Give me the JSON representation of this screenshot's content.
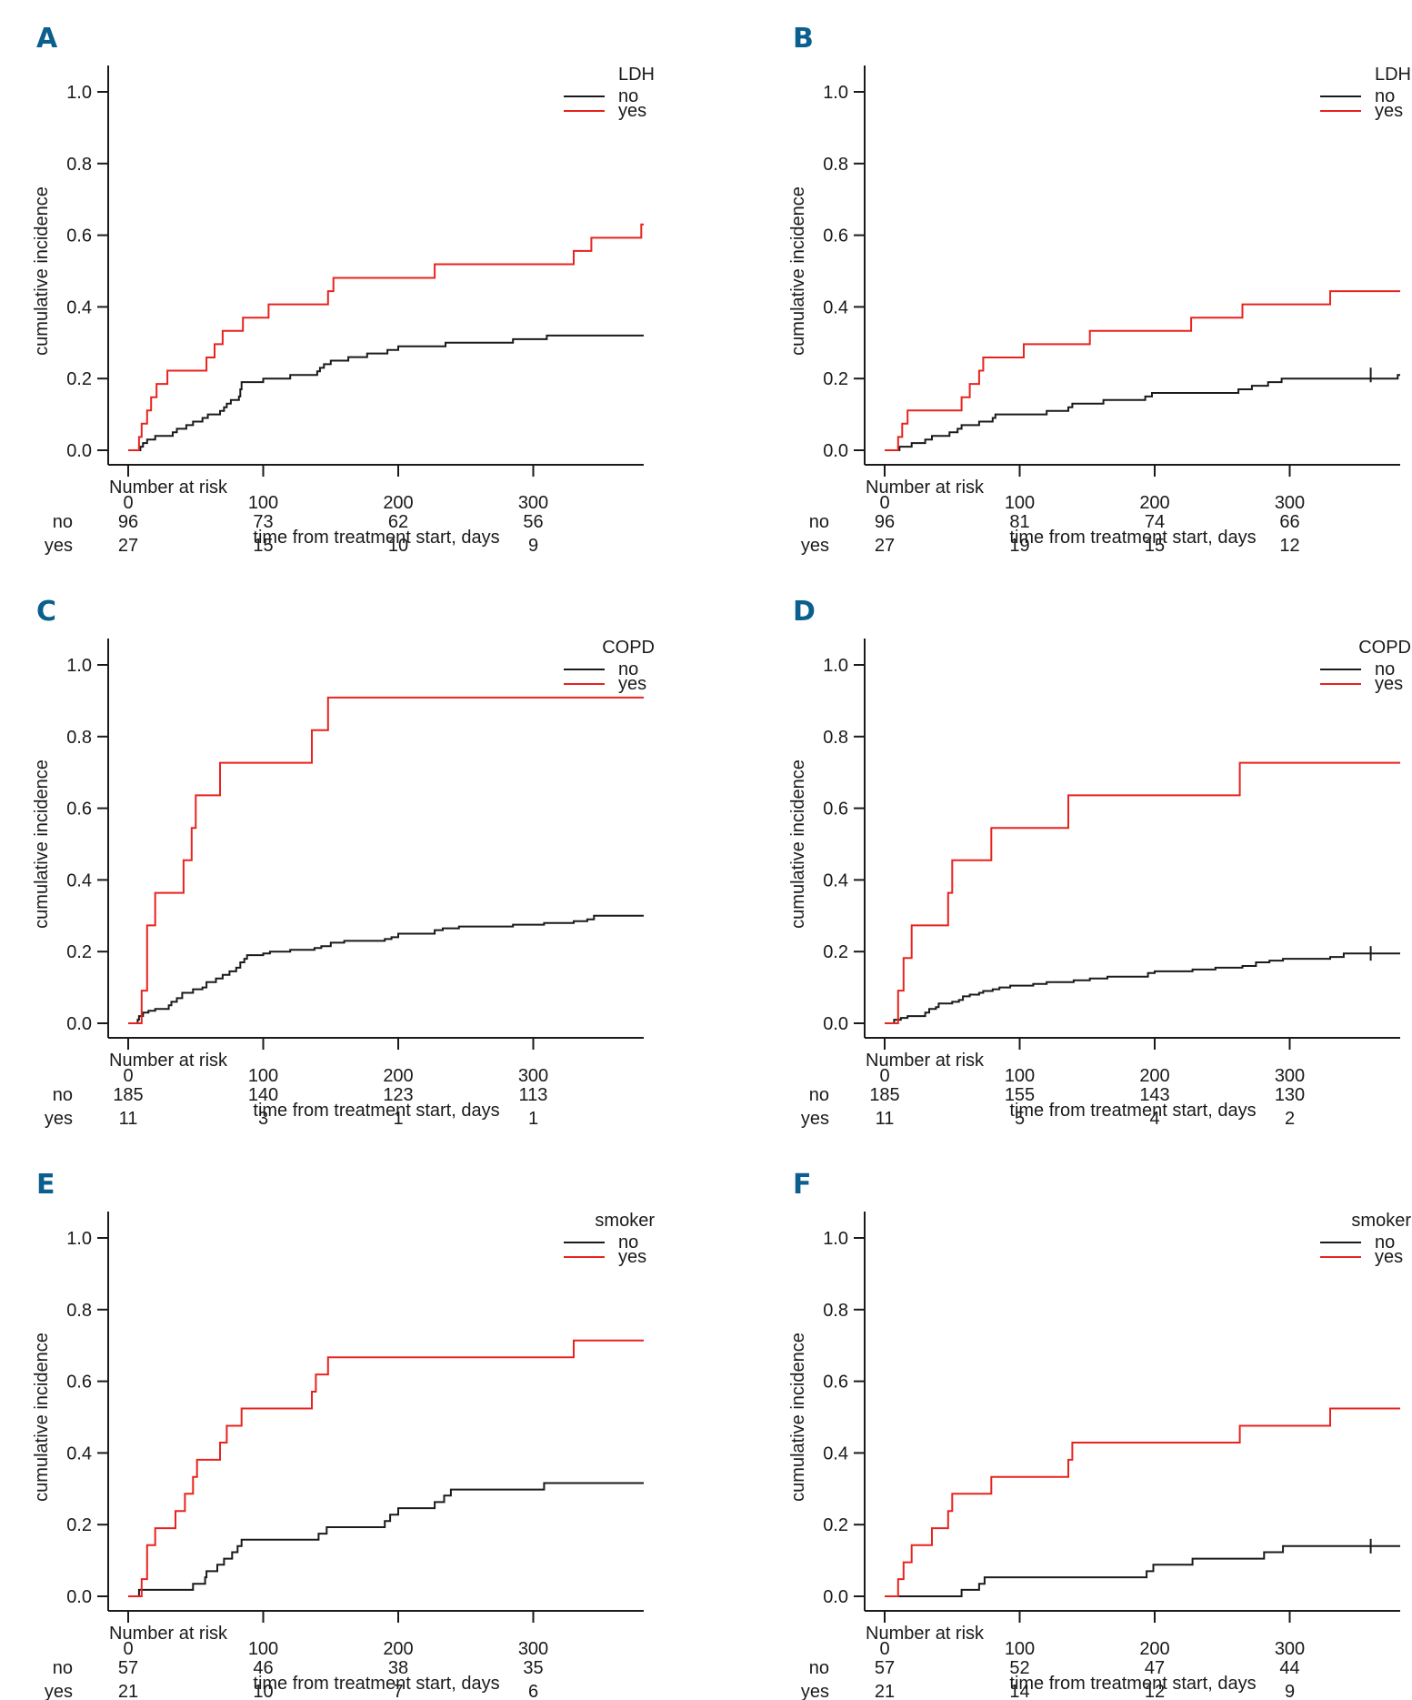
{
  "colors": {
    "no": "#1a1a1a",
    "yes": "#e8231e",
    "panel_letter": "#0b5f8f",
    "axis": "#1a1a1a"
  },
  "chart_data": [
    {
      "panel": "A",
      "type": "line",
      "step": true,
      "xlabel": "time from treatment start, days",
      "ylabel": "cumulative incidence",
      "xlim": [
        0,
        380
      ],
      "ylim": [
        0,
        1.0
      ],
      "xticks": [
        0,
        100,
        200,
        300
      ],
      "yticks": [
        "0.0",
        "0.2",
        "0.4",
        "0.6",
        "0.8",
        "1.0"
      ],
      "legend": {
        "title": "LDH",
        "position": "top-right",
        "entries": [
          "no",
          "yes"
        ]
      },
      "series": [
        {
          "name": "no",
          "censor_marks": [],
          "x": [
            0,
            7,
            9,
            11,
            14,
            20,
            30,
            33,
            36,
            43,
            48,
            55,
            59,
            68,
            71,
            73,
            76,
            82,
            83,
            84,
            98,
            100,
            120,
            140,
            142,
            145,
            150,
            163,
            177,
            192,
            195,
            200,
            225,
            235,
            285,
            310,
            330,
            380
          ],
          "y": [
            0,
            0,
            0.01,
            0.02,
            0.03,
            0.04,
            0.04,
            0.05,
            0.06,
            0.07,
            0.08,
            0.09,
            0.1,
            0.11,
            0.12,
            0.13,
            0.14,
            0.15,
            0.17,
            0.19,
            0.19,
            0.2,
            0.21,
            0.22,
            0.23,
            0.24,
            0.25,
            0.26,
            0.27,
            0.28,
            0.28,
            0.29,
            0.29,
            0.3,
            0.31,
            0.32,
            0.32,
            0.32
          ]
        },
        {
          "name": "yes",
          "censor_marks": [],
          "x": [
            0,
            7,
            8,
            10,
            14,
            17,
            21,
            29,
            58,
            64,
            70,
            85,
            104,
            148,
            152,
            227,
            330,
            343,
            380
          ],
          "y": [
            0,
            0,
            0.037,
            0.074,
            0.111,
            0.148,
            0.185,
            0.222,
            0.259,
            0.296,
            0.333,
            0.37,
            0.407,
            0.444,
            0.481,
            0.519,
            0.556,
            0.593,
            0.63
          ]
        }
      ],
      "number_at_risk": {
        "title": "Number at risk",
        "times": [
          0,
          100,
          200,
          300
        ],
        "rows": [
          {
            "label": "no",
            "values": [
              96,
              73,
              62,
              56
            ]
          },
          {
            "label": "yes",
            "values": [
              27,
              15,
              10,
              9
            ]
          }
        ]
      }
    },
    {
      "panel": "B",
      "type": "line",
      "step": true,
      "xlabel": "time from treatment start, days",
      "ylabel": "cumulative incidence",
      "xlim": [
        0,
        380
      ],
      "ylim": [
        0,
        1.0
      ],
      "xticks": [
        0,
        100,
        200,
        300
      ],
      "yticks": [
        "0.0",
        "0.2",
        "0.4",
        "0.6",
        "0.8",
        "1.0"
      ],
      "legend": {
        "title": "LDH",
        "position": "top-right",
        "entries": [
          "no",
          "yes"
        ]
      },
      "series": [
        {
          "name": "no",
          "censor_marks": [
            [
              360,
              0.21
            ]
          ],
          "x": [
            0,
            11,
            20,
            30,
            35,
            48,
            54,
            57,
            70,
            80,
            82,
            120,
            136,
            139,
            162,
            193,
            198,
            262,
            272,
            284,
            294,
            380
          ],
          "y": [
            0,
            0.01,
            0.02,
            0.03,
            0.04,
            0.05,
            0.06,
            0.07,
            0.08,
            0.09,
            0.1,
            0.11,
            0.12,
            0.13,
            0.14,
            0.15,
            0.16,
            0.17,
            0.18,
            0.19,
            0.2,
            0.21
          ]
        },
        {
          "name": "yes",
          "censor_marks": [],
          "x": [
            0,
            10,
            13,
            17,
            57,
            63,
            70,
            73,
            103,
            152,
            227,
            265,
            330,
            380
          ],
          "y": [
            0,
            0.037,
            0.074,
            0.111,
            0.148,
            0.185,
            0.222,
            0.259,
            0.296,
            0.333,
            0.37,
            0.407,
            0.444,
            0.444
          ]
        }
      ],
      "number_at_risk": {
        "title": "Number at risk",
        "times": [
          0,
          100,
          200,
          300
        ],
        "rows": [
          {
            "label": "no",
            "values": [
              96,
              81,
              74,
              66
            ]
          },
          {
            "label": "yes",
            "values": [
              27,
              19,
              15,
              12
            ]
          }
        ]
      }
    },
    {
      "panel": "C",
      "type": "line",
      "step": true,
      "xlabel": "time from treatment start, days",
      "ylabel": "cumulative incidence",
      "xlim": [
        0,
        380
      ],
      "ylim": [
        0,
        1.0
      ],
      "xticks": [
        0,
        100,
        200,
        300
      ],
      "yticks": [
        "0.0",
        "0.2",
        "0.4",
        "0.6",
        "0.8",
        "1.0"
      ],
      "legend": {
        "title": "COPD",
        "position": "top-right",
        "entries": [
          "no",
          "yes"
        ]
      },
      "series": [
        {
          "name": "no",
          "censor_marks": [],
          "x": [
            0,
            7,
            8,
            11,
            15,
            20,
            30,
            32,
            36,
            40,
            48,
            55,
            58,
            65,
            70,
            75,
            80,
            83,
            86,
            88,
            100,
            105,
            120,
            138,
            143,
            150,
            160,
            190,
            195,
            200,
            227,
            233,
            245,
            285,
            308,
            330,
            340,
            345,
            380
          ],
          "y": [
            0,
            0.01,
            0.02,
            0.03,
            0.035,
            0.04,
            0.05,
            0.06,
            0.07,
            0.085,
            0.095,
            0.1,
            0.115,
            0.125,
            0.135,
            0.145,
            0.155,
            0.17,
            0.18,
            0.19,
            0.195,
            0.2,
            0.205,
            0.21,
            0.215,
            0.225,
            0.23,
            0.235,
            0.24,
            0.25,
            0.26,
            0.265,
            0.27,
            0.275,
            0.28,
            0.285,
            0.29,
            0.3,
            0.3
          ]
        },
        {
          "name": "yes",
          "censor_marks": [],
          "x": [
            0,
            10,
            14,
            20,
            41,
            47,
            50,
            68,
            136,
            148,
            380
          ],
          "y": [
            0,
            0.091,
            0.273,
            0.364,
            0.455,
            0.545,
            0.636,
            0.727,
            0.818,
            0.909,
            0.909
          ]
        }
      ],
      "number_at_risk": {
        "title": "Number at risk",
        "times": [
          0,
          100,
          200,
          300
        ],
        "rows": [
          {
            "label": "no",
            "values": [
              185,
              140,
              123,
              113
            ]
          },
          {
            "label": "yes",
            "values": [
              11,
              3,
              1,
              1
            ]
          }
        ]
      }
    },
    {
      "panel": "D",
      "type": "line",
      "step": true,
      "xlabel": "time from treatment start, days",
      "ylabel": "cumulative incidence",
      "xlim": [
        0,
        380
      ],
      "ylim": [
        0,
        1.0
      ],
      "xticks": [
        0,
        100,
        200,
        300
      ],
      "yticks": [
        "0.0",
        "0.2",
        "0.4",
        "0.6",
        "0.8",
        "1.0"
      ],
      "legend": {
        "title": "COPD",
        "position": "top-right",
        "entries": [
          "no",
          "yes"
        ]
      },
      "series": [
        {
          "name": "no",
          "censor_marks": [
            [
              360,
              0.195
            ]
          ],
          "x": [
            0,
            7,
            12,
            17,
            30,
            33,
            38,
            40,
            50,
            55,
            58,
            63,
            70,
            73,
            80,
            85,
            93,
            110,
            120,
            140,
            152,
            165,
            195,
            200,
            228,
            245,
            265,
            275,
            285,
            295,
            330,
            340,
            380
          ],
          "y": [
            0,
            0.01,
            0.015,
            0.02,
            0.03,
            0.04,
            0.045,
            0.055,
            0.06,
            0.065,
            0.075,
            0.08,
            0.085,
            0.09,
            0.095,
            0.1,
            0.105,
            0.11,
            0.115,
            0.12,
            0.125,
            0.13,
            0.14,
            0.145,
            0.15,
            0.155,
            0.16,
            0.17,
            0.175,
            0.18,
            0.185,
            0.195,
            0.195
          ]
        },
        {
          "name": "yes",
          "censor_marks": [],
          "x": [
            0,
            10,
            14,
            20,
            47,
            50,
            79,
            136,
            263,
            380
          ],
          "y": [
            0,
            0.091,
            0.182,
            0.273,
            0.364,
            0.455,
            0.545,
            0.636,
            0.727,
            0.727
          ]
        }
      ],
      "number_at_risk": {
        "title": "Number at risk",
        "times": [
          0,
          100,
          200,
          300
        ],
        "rows": [
          {
            "label": "no",
            "values": [
              185,
              155,
              143,
              130
            ]
          },
          {
            "label": "yes",
            "values": [
              11,
              5,
              4,
              2
            ]
          }
        ]
      }
    },
    {
      "panel": "E",
      "type": "line",
      "step": true,
      "xlabel": "time from treatment start, days",
      "ylabel": "cumulative incidence",
      "xlim": [
        0,
        380
      ],
      "ylim": [
        0,
        1.0
      ],
      "xticks": [
        0,
        100,
        200,
        300
      ],
      "yticks": [
        "0.0",
        "0.2",
        "0.4",
        "0.6",
        "0.8",
        "1.0"
      ],
      "legend": {
        "title": "smoker",
        "position": "top-right",
        "entries": [
          "no",
          "yes"
        ]
      },
      "series": [
        {
          "name": "no",
          "censor_marks": [],
          "x": [
            0,
            8,
            48,
            57,
            58,
            66,
            71,
            77,
            81,
            84,
            141,
            147,
            190,
            194,
            200,
            227,
            234,
            239,
            308,
            380
          ],
          "y": [
            0,
            0.018,
            0.035,
            0.053,
            0.07,
            0.088,
            0.105,
            0.123,
            0.14,
            0.158,
            0.175,
            0.193,
            0.21,
            0.228,
            0.246,
            0.263,
            0.281,
            0.298,
            0.316,
            0.316
          ]
        },
        {
          "name": "yes",
          "censor_marks": [],
          "x": [
            0,
            10,
            14,
            20,
            35,
            42,
            48,
            51,
            68,
            73,
            84,
            136,
            139,
            148,
            330,
            380
          ],
          "y": [
            0,
            0.048,
            0.143,
            0.19,
            0.238,
            0.286,
            0.333,
            0.381,
            0.429,
            0.476,
            0.524,
            0.571,
            0.619,
            0.667,
            0.714,
            0.714
          ]
        }
      ],
      "number_at_risk": {
        "title": "Number at risk",
        "times": [
          0,
          100,
          200,
          300
        ],
        "rows": [
          {
            "label": "no",
            "values": [
              57,
              46,
              38,
              35
            ]
          },
          {
            "label": "yes",
            "values": [
              21,
              10,
              7,
              6
            ]
          }
        ]
      }
    },
    {
      "panel": "F",
      "type": "line",
      "step": true,
      "xlabel": "time from treatment start, days",
      "ylabel": "cumulative incidence",
      "xlim": [
        0,
        380
      ],
      "ylim": [
        0,
        1.0
      ],
      "xticks": [
        0,
        100,
        200,
        300
      ],
      "yticks": [
        "0.0",
        "0.2",
        "0.4",
        "0.6",
        "0.8",
        "1.0"
      ],
      "legend": {
        "title": "smoker",
        "position": "top-right",
        "entries": [
          "no",
          "yes"
        ]
      },
      "series": [
        {
          "name": "no",
          "censor_marks": [
            [
              360,
              0.14
            ]
          ],
          "x": [
            0,
            57,
            70,
            74,
            194,
            199,
            228,
            281,
            295,
            380
          ],
          "y": [
            0,
            0.018,
            0.035,
            0.053,
            0.07,
            0.088,
            0.105,
            0.123,
            0.14,
            0.14
          ]
        },
        {
          "name": "yes",
          "censor_marks": [],
          "x": [
            0,
            10,
            14,
            20,
            35,
            47,
            50,
            79,
            136,
            139,
            263,
            330,
            380
          ],
          "y": [
            0,
            0.048,
            0.095,
            0.143,
            0.19,
            0.238,
            0.286,
            0.333,
            0.381,
            0.429,
            0.476,
            0.524,
            0.524
          ]
        }
      ],
      "number_at_risk": {
        "title": "Number at risk",
        "times": [
          0,
          100,
          200,
          300
        ],
        "rows": [
          {
            "label": "no",
            "values": [
              57,
              52,
              47,
              44
            ]
          },
          {
            "label": "yes",
            "values": [
              21,
              14,
              12,
              9
            ]
          }
        ]
      }
    }
  ]
}
